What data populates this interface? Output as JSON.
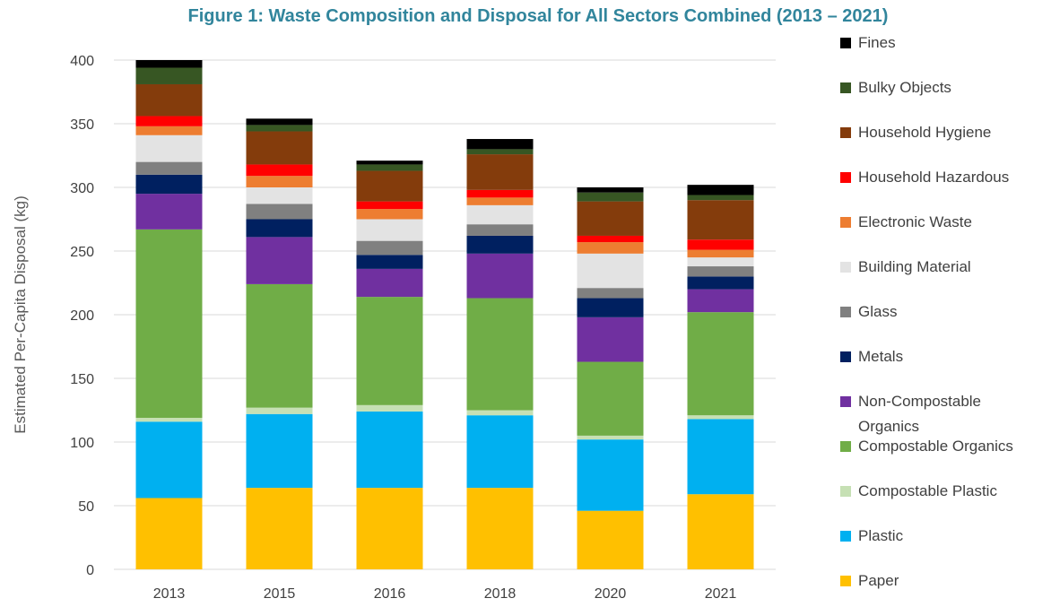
{
  "chart_data": {
    "type": "stacked_bar",
    "title": "Figure 1: Waste Composition and Disposal for All Sectors Combined (2013 – 2021)",
    "y_label": "Estimated Per-Capita Disposal (kg)",
    "categories": [
      "2013",
      "2015",
      "2016",
      "2018",
      "2020",
      "2021"
    ],
    "ylim": [
      0,
      400
    ],
    "yticks": [
      0,
      50,
      100,
      150,
      200,
      250,
      300,
      350,
      400
    ],
    "grid": true,
    "legend": "right",
    "series": [
      {
        "name": "Paper",
        "color": "#ffc000",
        "values": [
          56,
          64,
          64,
          64,
          46,
          59
        ]
      },
      {
        "name": "Plastic",
        "color": "#00b0f0",
        "values": [
          60,
          58,
          60,
          57,
          56,
          59
        ]
      },
      {
        "name": "Compostable Plastic",
        "color": "#c6e0b4",
        "values": [
          3,
          5,
          5,
          4,
          3,
          3
        ]
      },
      {
        "name": "Compostable Organics",
        "color": "#70ad47",
        "values": [
          148,
          97,
          85,
          88,
          58,
          81
        ]
      },
      {
        "name": "Non-Compostable Organics",
        "color": "#7030a0",
        "values": [
          28,
          37,
          22,
          35,
          35,
          18
        ]
      },
      {
        "name": "Metals",
        "color": "#002060",
        "values": [
          15,
          14,
          11,
          14,
          15,
          10
        ]
      },
      {
        "name": "Glass",
        "color": "#808080",
        "values": [
          10,
          12,
          11,
          9,
          8,
          8
        ]
      },
      {
        "name": "Building Material",
        "color": "#e3e3e3",
        "values": [
          21,
          13,
          17,
          15,
          27,
          7
        ]
      },
      {
        "name": "Electronic Waste",
        "color": "#ed7d31",
        "values": [
          7,
          9,
          8,
          6,
          9,
          6
        ]
      },
      {
        "name": "Household Hazardous",
        "color": "#ff0000",
        "values": [
          8,
          9,
          6,
          6,
          5,
          8
        ]
      },
      {
        "name": "Household Hygiene",
        "color": "#843c0c",
        "values": [
          25,
          26,
          24,
          28,
          27,
          31
        ]
      },
      {
        "name": "Bulky Objects",
        "color": "#375623",
        "values": [
          13,
          5,
          5,
          4,
          7,
          4
        ]
      },
      {
        "name": "Fines",
        "color": "#000000",
        "values": [
          6,
          5,
          3,
          8,
          4,
          8
        ]
      }
    ]
  }
}
